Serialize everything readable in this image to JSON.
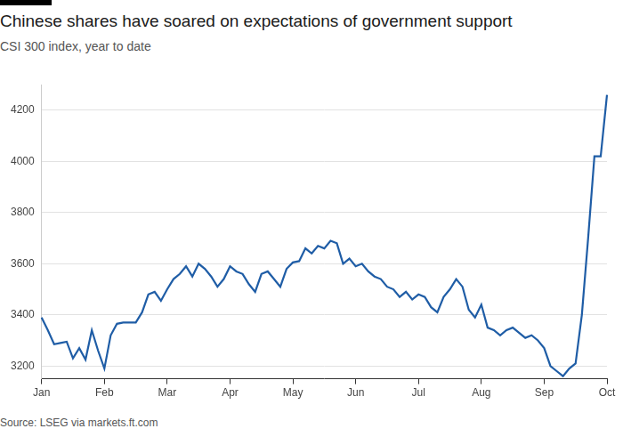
{
  "chart_data": {
    "type": "line",
    "title": "Chinese shares have soared on expectations of government support",
    "subtitle": "CSI 300 index, year to date",
    "source": "Source: LSEG via markets.ft.com",
    "categories": [
      "Jan",
      null,
      null,
      null,
      null,
      null,
      null,
      null,
      null,
      null,
      "Feb",
      null,
      null,
      null,
      null,
      null,
      null,
      null,
      null,
      null,
      "Mar",
      null,
      null,
      null,
      null,
      null,
      null,
      null,
      null,
      null,
      "Apr",
      null,
      null,
      null,
      null,
      null,
      null,
      null,
      null,
      null,
      "May",
      null,
      null,
      null,
      null,
      null,
      null,
      null,
      null,
      null,
      "Jun",
      null,
      null,
      null,
      null,
      null,
      null,
      null,
      null,
      null,
      "Jul",
      null,
      null,
      null,
      null,
      null,
      null,
      null,
      null,
      null,
      "Aug",
      null,
      null,
      null,
      null,
      null,
      null,
      null,
      null,
      null,
      "Sep",
      null,
      null,
      null,
      null,
      null,
      null,
      null,
      null,
      null,
      "Oct"
    ],
    "values": [
      3390,
      3340,
      3285,
      3290,
      3295,
      3230,
      3270,
      3225,
      3340,
      3260,
      3190,
      3320,
      3365,
      3370,
      3370,
      3370,
      3410,
      3480,
      3490,
      3455,
      3500,
      3540,
      3560,
      3590,
      3550,
      3600,
      3580,
      3550,
      3510,
      3540,
      3590,
      3570,
      3560,
      3520,
      3490,
      3560,
      3570,
      3540,
      3510,
      3580,
      3605,
      3610,
      3660,
      3640,
      3670,
      3660,
      3690,
      3680,
      3600,
      3620,
      3590,
      3600,
      3570,
      3550,
      3540,
      3510,
      3500,
      3470,
      3490,
      3460,
      3480,
      3470,
      3430,
      3410,
      3470,
      3500,
      3540,
      3510,
      3420,
      3390,
      3440,
      3350,
      3340,
      3320,
      3340,
      3350,
      3330,
      3310,
      3320,
      3300,
      3270,
      3200,
      3180,
      3160,
      3190,
      3210,
      3400,
      3700,
      4020,
      4020,
      4260
    ],
    "color": "#1f5da6",
    "ylim": [
      3150,
      4300
    ],
    "yticks": [
      3200,
      3400,
      3600,
      3800,
      4000,
      4200
    ],
    "grid": true
  }
}
